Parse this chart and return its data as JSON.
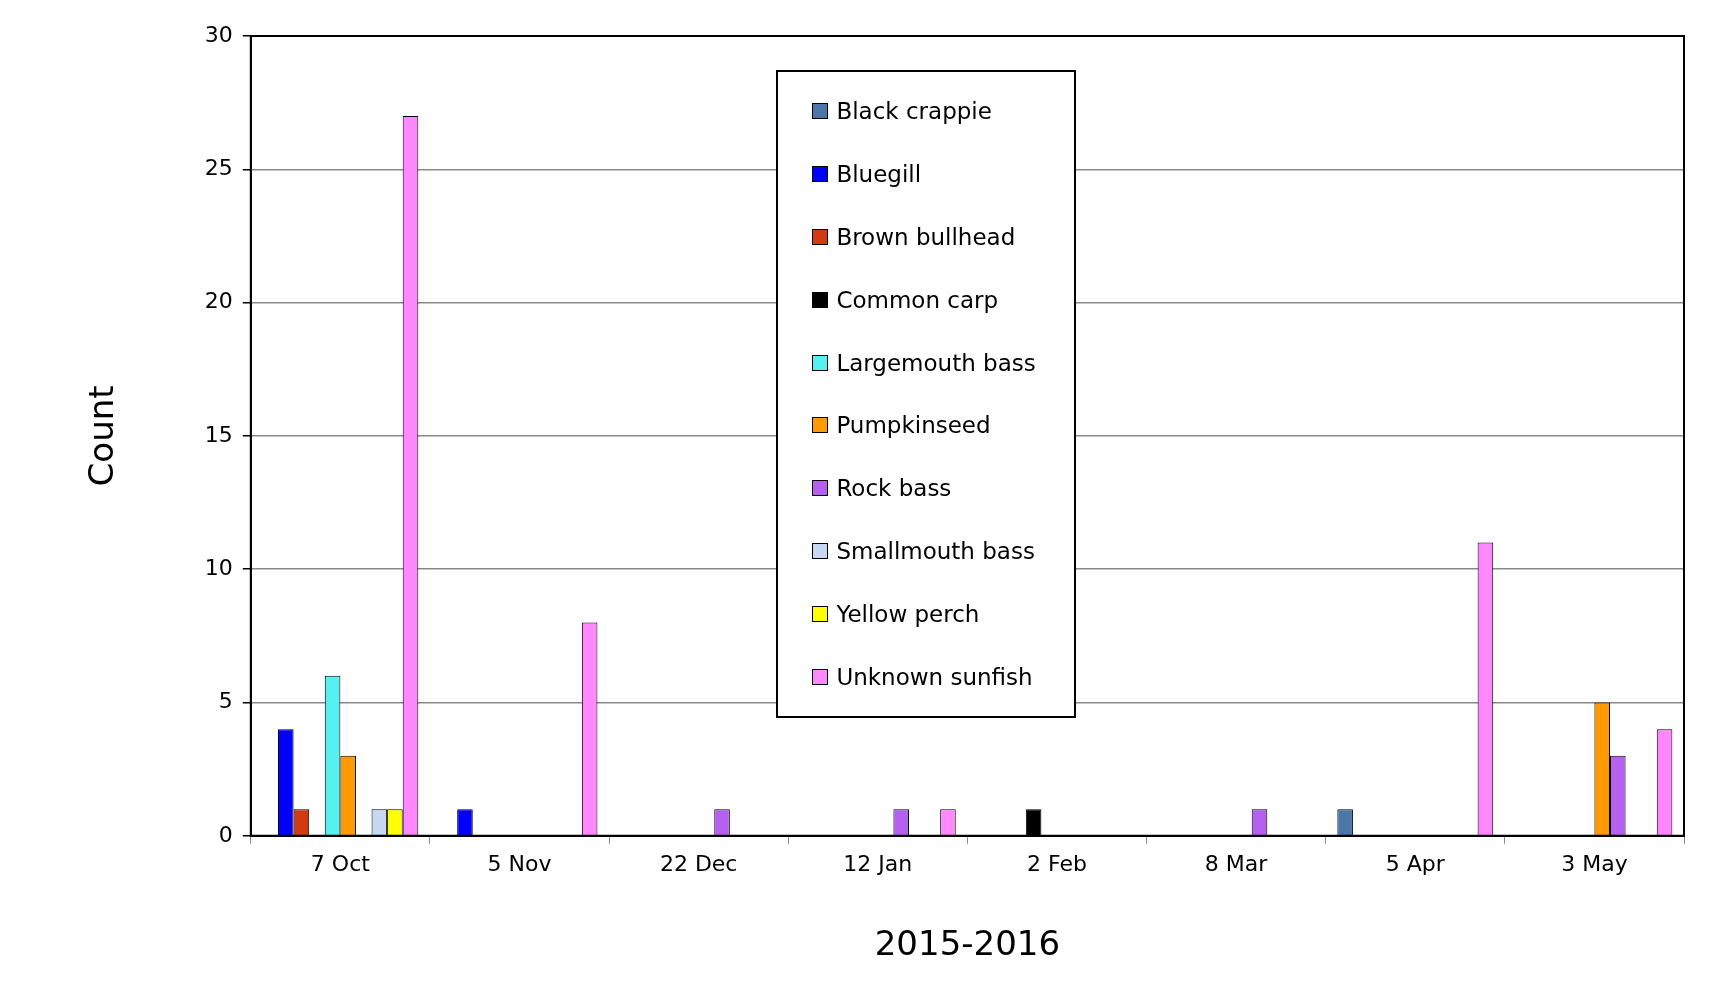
{
  "chart_data": {
    "type": "bar",
    "xlabel": "2015-2016",
    "ylabel": "Count",
    "categories": [
      "7 Oct",
      "5 Nov",
      "22 Dec",
      "12 Jan",
      "2 Feb",
      "8 Mar",
      "5 Apr",
      "3 May"
    ],
    "series": [
      {
        "name": "Black crappie",
        "color": "#4a76a8",
        "values": [
          0,
          0,
          0,
          0,
          0,
          0,
          1,
          0
        ]
      },
      {
        "name": "Bluegill",
        "color": "#0000ff",
        "values": [
          4,
          1,
          0,
          0,
          0,
          0,
          0,
          0
        ]
      },
      {
        "name": "Brown bullhead",
        "color": "#d23a10",
        "values": [
          1,
          0,
          0,
          0,
          0,
          0,
          0,
          0
        ]
      },
      {
        "name": "Common carp",
        "color": "#000000",
        "values": [
          0,
          0,
          0,
          0,
          1,
          0,
          0,
          0
        ]
      },
      {
        "name": "Largemouth bass",
        "color": "#55f0f0",
        "values": [
          6,
          0,
          0,
          0,
          0,
          0,
          0,
          0
        ]
      },
      {
        "name": "Pumpkinseed",
        "color": "#ff9a00",
        "values": [
          3,
          0,
          0,
          0,
          0,
          0,
          0,
          5
        ]
      },
      {
        "name": "Rock bass",
        "color": "#b660f0",
        "values": [
          0,
          0,
          1,
          1,
          0,
          1,
          0,
          3
        ]
      },
      {
        "name": "Smallmouth bass",
        "color": "#c6d9f1",
        "values": [
          1,
          0,
          0,
          0,
          0,
          0,
          0,
          0
        ]
      },
      {
        "name": "Yellow perch",
        "color": "#ffff00",
        "values": [
          1,
          0,
          0,
          0,
          0,
          0,
          0,
          0
        ]
      },
      {
        "name": "Unknown sunfish",
        "color": "#ff88ff",
        "values": [
          27,
          8,
          0,
          1,
          0,
          0,
          11,
          4
        ]
      }
    ],
    "ylim": [
      0,
      30
    ],
    "yticks": [
      0,
      5,
      10,
      15,
      20,
      25,
      30
    ],
    "grid": "y",
    "legend": "top"
  }
}
